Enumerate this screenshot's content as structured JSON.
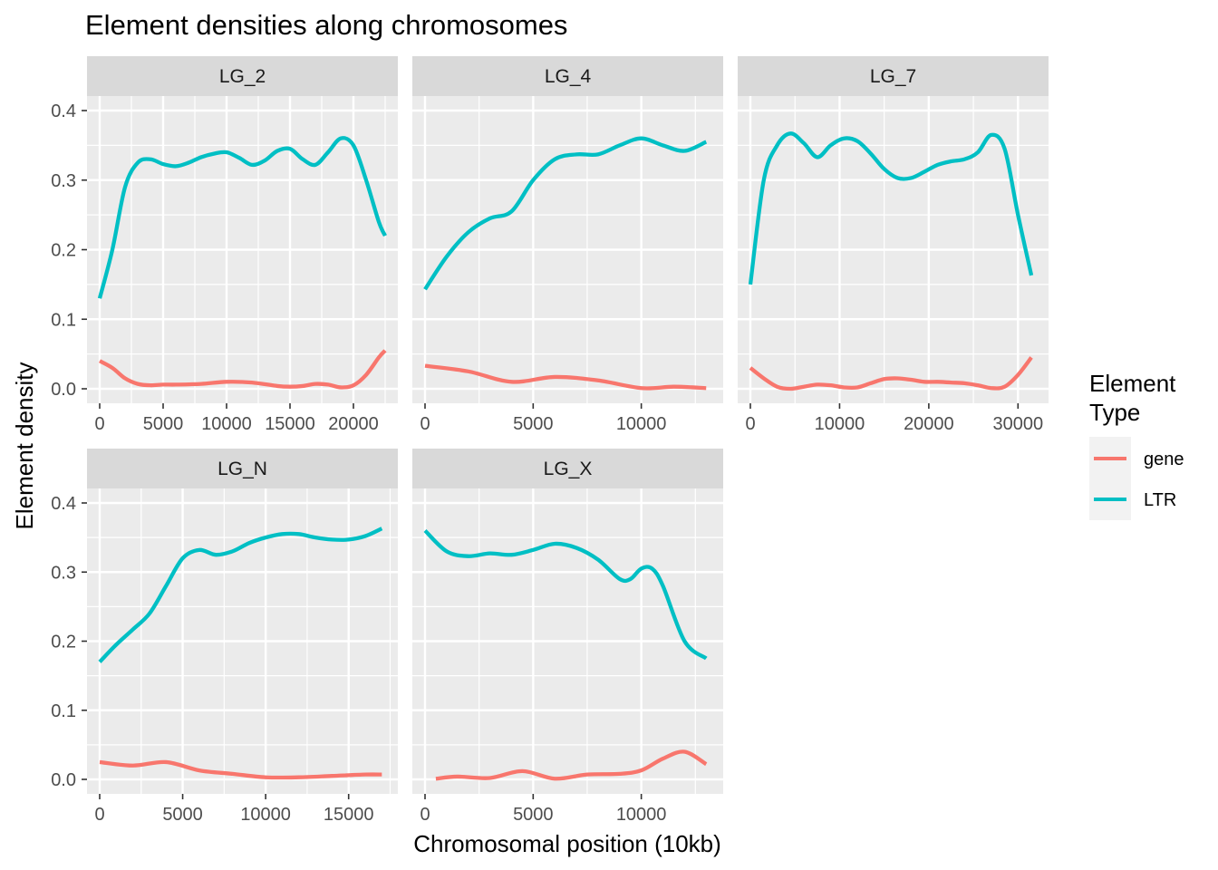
{
  "chart_data": {
    "type": "line",
    "title": "Element densities along chromosomes",
    "xlabel": "Chromosomal position (10kb)",
    "ylabel": "Element density",
    "ylim": [
      0,
      0.4
    ],
    "yticks": [
      0.0,
      0.1,
      0.2,
      0.3,
      0.4
    ],
    "ytick_labels": [
      "0.0",
      "0.1",
      "0.2",
      "0.3",
      "0.4"
    ],
    "grid": true,
    "legend": {
      "title": "Element\nType",
      "title_lines": [
        "Element",
        "Type"
      ],
      "placement": "right",
      "entries": [
        {
          "name": "gene",
          "color": "#F8766D"
        },
        {
          "name": "LTR",
          "color": "#00BFC4"
        }
      ]
    },
    "colors": {
      "gene": "#F8766D",
      "LTR": "#00BFC4",
      "panel_bg": "#EBEBEB",
      "strip_bg": "#D9D9D9",
      "grid": "#FFFFFF"
    },
    "facets": [
      {
        "name": "LG_2",
        "xlim": [
          0,
          22500
        ],
        "xticks": [
          0,
          5000,
          10000,
          15000,
          20000
        ],
        "xtick_labels": [
          "0",
          "5000",
          "10000",
          "15000",
          "20000"
        ],
        "show_x_axis": true,
        "show_y_axis": true,
        "series": [
          {
            "name": "LTR",
            "x": [
              0,
              1000,
              2000,
              3000,
              4000,
              5000,
              6000,
              7000,
              8000,
              9000,
              10000,
              11000,
              12000,
              13000,
              14000,
              15000,
              16000,
              17000,
              18000,
              19000,
              20000,
              21000,
              22000,
              22500
            ],
            "y": [
              0.13,
              0.2,
              0.29,
              0.325,
              0.33,
              0.323,
              0.32,
              0.325,
              0.333,
              0.338,
              0.34,
              0.332,
              0.322,
              0.328,
              0.342,
              0.345,
              0.33,
              0.322,
              0.34,
              0.36,
              0.35,
              0.3,
              0.24,
              0.22
            ]
          },
          {
            "name": "gene",
            "x": [
              0,
              1000,
              2000,
              3000,
              4000,
              5000,
              6000,
              8000,
              10000,
              12000,
              14000,
              15000,
              16000,
              17000,
              18000,
              19000,
              20000,
              21000,
              22000,
              22500
            ],
            "y": [
              0.04,
              0.03,
              0.015,
              0.007,
              0.005,
              0.006,
              0.006,
              0.007,
              0.01,
              0.009,
              0.004,
              0.003,
              0.004,
              0.007,
              0.006,
              0.002,
              0.005,
              0.02,
              0.045,
              0.055
            ]
          }
        ]
      },
      {
        "name": "LG_4",
        "xlim": [
          0,
          13200
        ],
        "xticks": [
          0,
          5000,
          10000
        ],
        "xtick_labels": [
          "0",
          "5000",
          "10000"
        ],
        "show_x_axis": true,
        "show_y_axis": false,
        "series": [
          {
            "name": "LTR",
            "x": [
              0,
              1000,
              2000,
              3000,
              4000,
              5000,
              6000,
              7000,
              8000,
              9000,
              10000,
              11000,
              12000,
              13000
            ],
            "y": [
              0.143,
              0.19,
              0.225,
              0.245,
              0.255,
              0.3,
              0.33,
              0.337,
              0.337,
              0.35,
              0.36,
              0.35,
              0.342,
              0.355
            ]
          },
          {
            "name": "gene",
            "x": [
              0,
              2000,
              4000,
              6000,
              8000,
              10000,
              11500,
              13000
            ],
            "y": [
              0.033,
              0.025,
              0.01,
              0.017,
              0.012,
              0.001,
              0.003,
              0.001
            ]
          }
        ]
      },
      {
        "name": "LG_7",
        "xlim": [
          0,
          32000
        ],
        "xticks": [
          0,
          10000,
          20000,
          30000
        ],
        "xtick_labels": [
          "0",
          "10000",
          "20000",
          "30000"
        ],
        "show_x_axis": true,
        "show_y_axis": false,
        "series": [
          {
            "name": "LTR",
            "x": [
              0,
              1500,
              3000,
              4500,
              6000,
              7500,
              9000,
              10500,
              12000,
              13500,
              15000,
              16500,
              18000,
              19500,
              21000,
              22500,
              24000,
              25500,
              27000,
              28500,
              30000,
              31500
            ],
            "y": [
              0.15,
              0.3,
              0.35,
              0.367,
              0.353,
              0.333,
              0.35,
              0.36,
              0.356,
              0.338,
              0.316,
              0.303,
              0.303,
              0.312,
              0.322,
              0.327,
              0.33,
              0.34,
              0.365,
              0.345,
              0.25,
              0.163
            ]
          },
          {
            "name": "gene",
            "x": [
              0,
              1500,
              3000,
              4500,
              6000,
              7500,
              9000,
              10500,
              12000,
              13500,
              15000,
              16500,
              18000,
              19500,
              21000,
              22500,
              24000,
              25500,
              27000,
              28500,
              30000,
              31500
            ],
            "y": [
              0.03,
              0.015,
              0.003,
              0.0,
              0.003,
              0.006,
              0.005,
              0.002,
              0.002,
              0.008,
              0.014,
              0.015,
              0.013,
              0.01,
              0.01,
              0.009,
              0.008,
              0.005,
              0.001,
              0.003,
              0.02,
              0.045
            ]
          }
        ]
      },
      {
        "name": "LG_N",
        "xlim": [
          0,
          17200
        ],
        "xticks": [
          0,
          5000,
          10000,
          15000
        ],
        "xtick_labels": [
          "0",
          "5000",
          "10000",
          "15000"
        ],
        "show_x_axis": true,
        "show_y_axis": true,
        "series": [
          {
            "name": "LTR",
            "x": [
              0,
              1000,
              2000,
              3000,
              4000,
              5000,
              6000,
              7000,
              8000,
              9000,
              10000,
              11000,
              12000,
              13000,
              14000,
              15000,
              16000,
              17000
            ],
            "y": [
              0.17,
              0.195,
              0.217,
              0.24,
              0.28,
              0.32,
              0.332,
              0.325,
              0.33,
              0.342,
              0.35,
              0.355,
              0.355,
              0.35,
              0.347,
              0.347,
              0.352,
              0.363
            ]
          },
          {
            "name": "gene",
            "x": [
              0,
              2000,
              4000,
              6000,
              8000,
              10000,
              12000,
              14000,
              16000,
              17000
            ],
            "y": [
              0.025,
              0.02,
              0.025,
              0.013,
              0.008,
              0.003,
              0.003,
              0.005,
              0.007,
              0.007
            ]
          }
        ]
      },
      {
        "name": "LG_X",
        "xlim": [
          0,
          13200
        ],
        "xticks": [
          0,
          5000,
          10000
        ],
        "xtick_labels": [
          "0",
          "5000",
          "10000"
        ],
        "show_x_axis": true,
        "show_y_axis": false,
        "series": [
          {
            "name": "LTR",
            "x": [
              0,
              1000,
              2000,
              3000,
              4000,
              5000,
              6000,
              7000,
              8000,
              9000,
              9500,
              10000,
              10500,
              11000,
              12000,
              13000
            ],
            "y": [
              0.36,
              0.33,
              0.323,
              0.327,
              0.325,
              0.332,
              0.341,
              0.335,
              0.318,
              0.29,
              0.29,
              0.305,
              0.305,
              0.28,
              0.2,
              0.175
            ]
          },
          {
            "name": "gene",
            "x": [
              500,
              1500,
              3000,
              4500,
              6000,
              7500,
              9000,
              10000,
              11000,
              12000,
              13000
            ],
            "y": [
              0.001,
              0.004,
              0.002,
              0.012,
              0.001,
              0.007,
              0.008,
              0.013,
              0.03,
              0.04,
              0.022
            ]
          }
        ]
      }
    ]
  }
}
